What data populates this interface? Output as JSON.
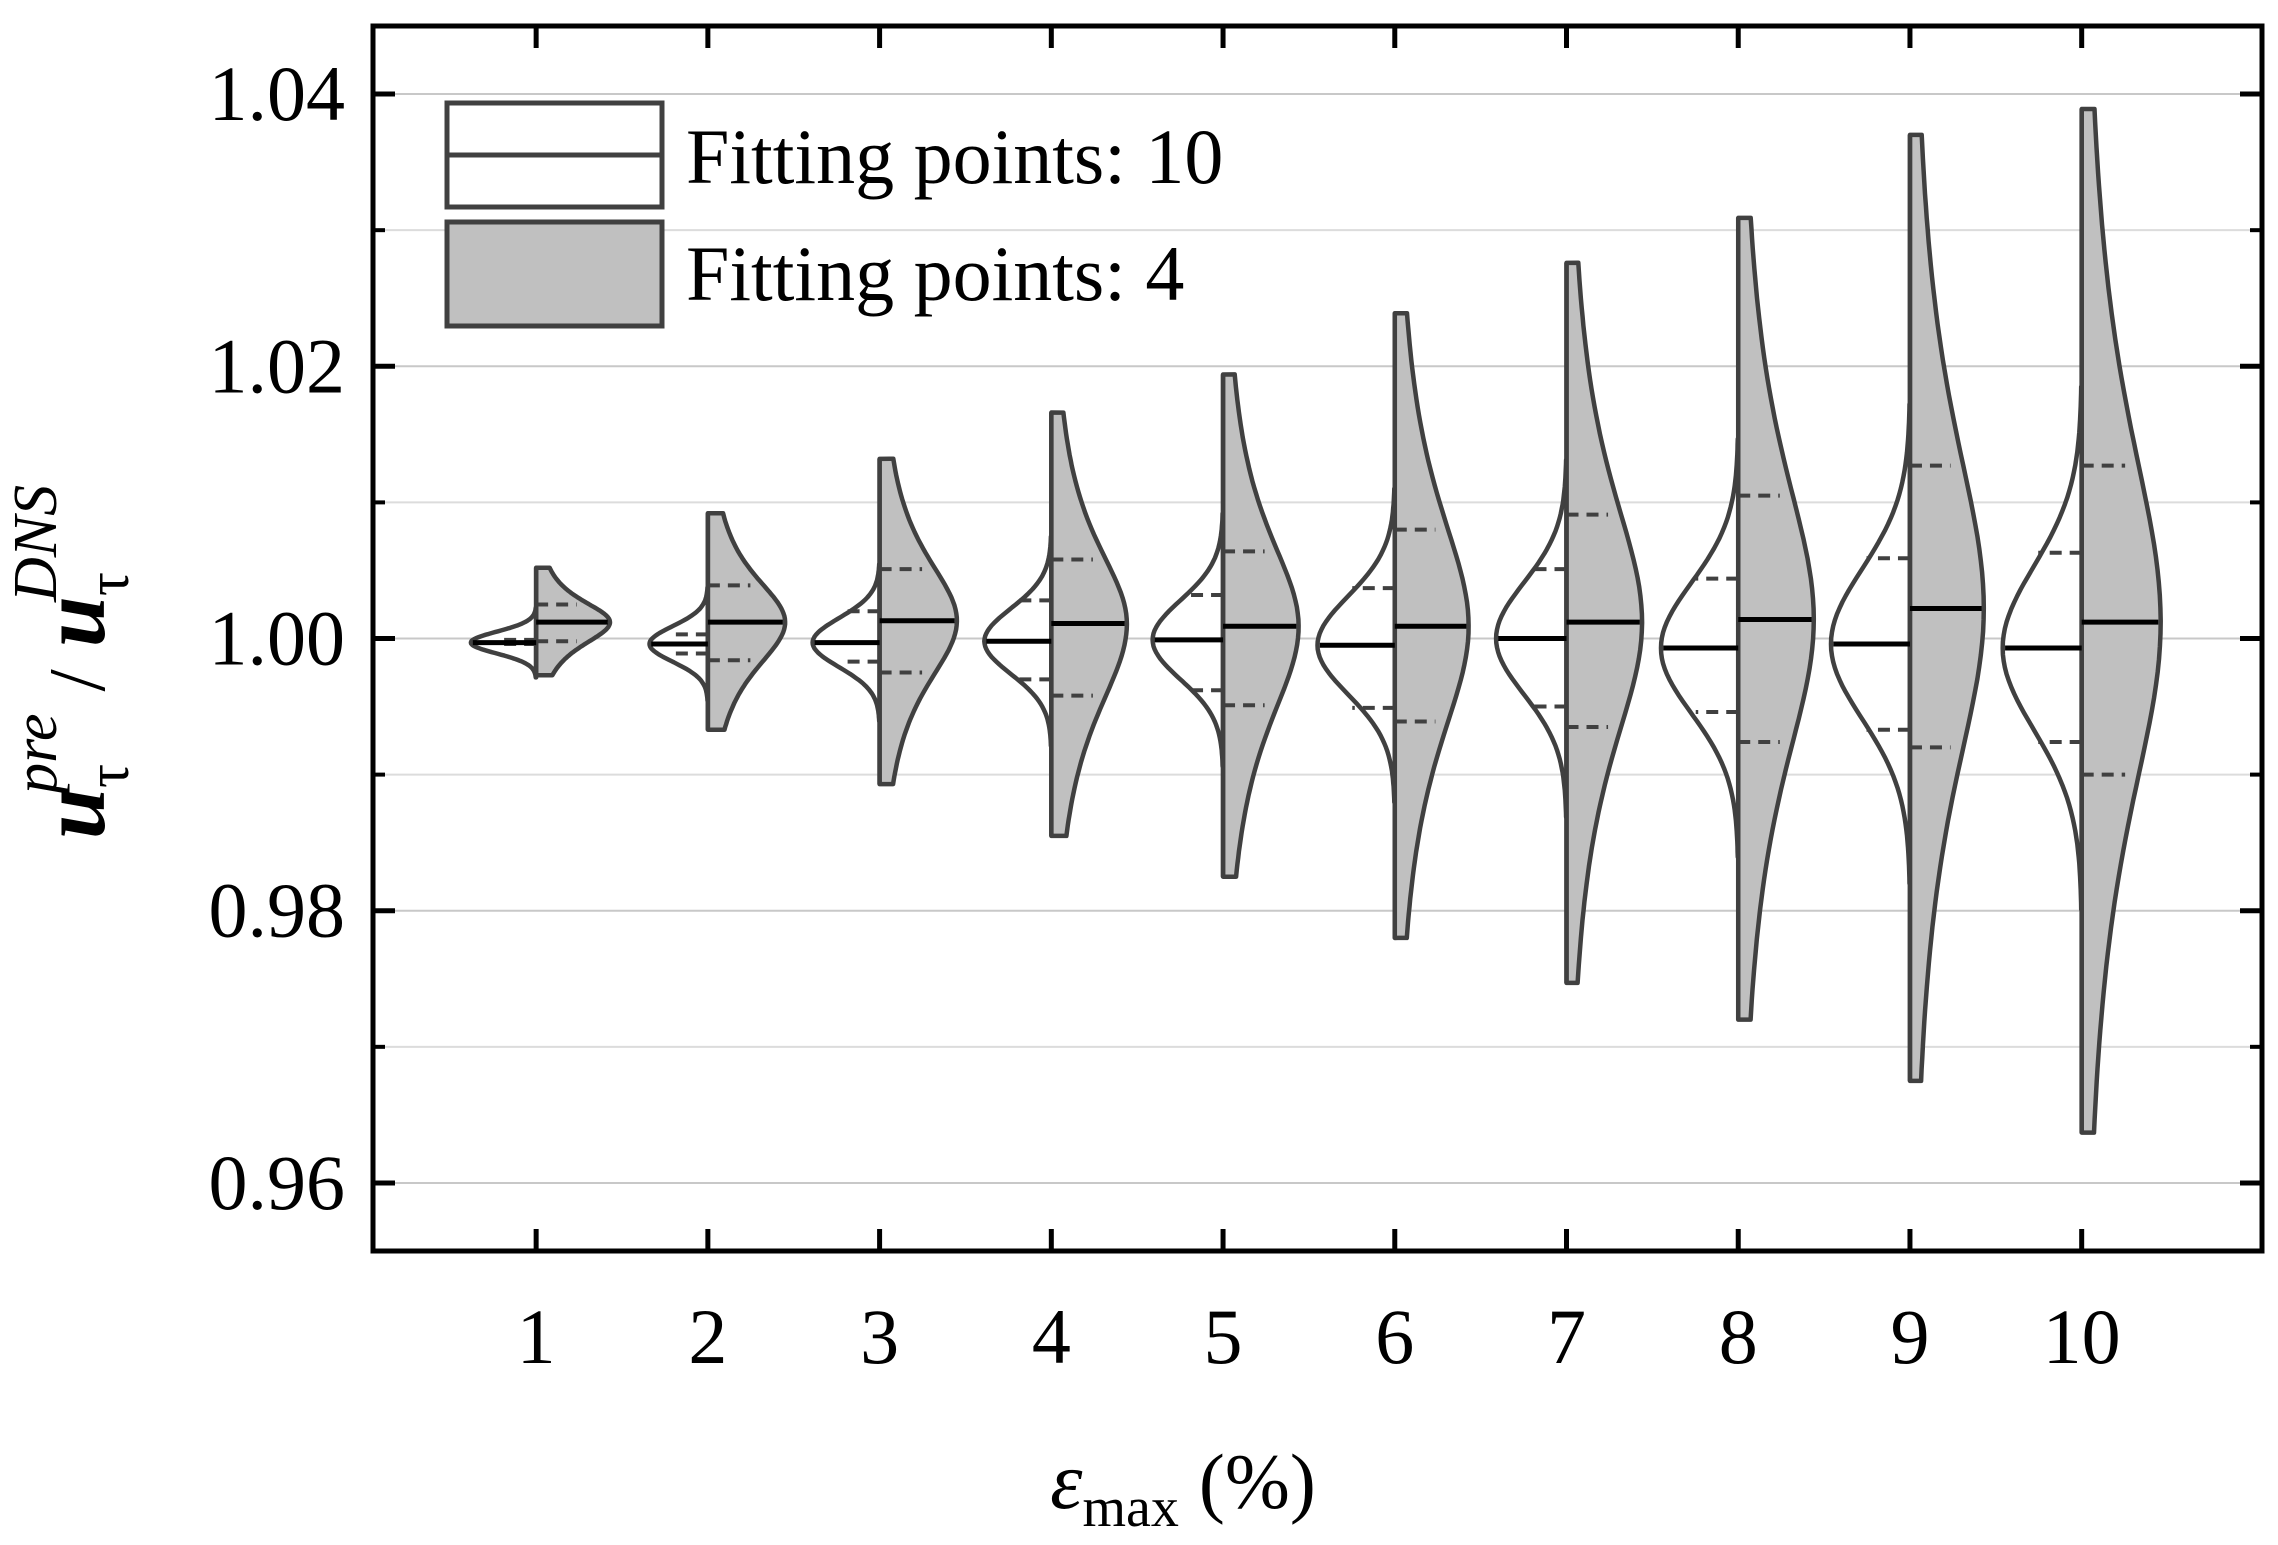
{
  "colors": {
    "frame": "#000000",
    "outline": "#404040",
    "fill_fp4": "#c0c0c0",
    "fill_fp10": "#ffffff",
    "grid_major": "#c8c8c8",
    "grid_minor": "#dcdcdc",
    "median": "#000000"
  },
  "chart_data": {
    "type": "split-violin",
    "xlabel": {
      "symbol": "ε",
      "subscript": "max",
      "unit": "(%)"
    },
    "ylabel": {
      "base": "u",
      "sub": "τ",
      "sup_pre": "pre",
      "sep": "/",
      "sup_dns": "DNS"
    },
    "categories": [
      "1",
      "2",
      "3",
      "4",
      "5",
      "6",
      "7",
      "8",
      "9",
      "10"
    ],
    "x_range": [
      0.05,
      11.05
    ],
    "ylim": [
      0.955,
      1.045
    ],
    "y_ticks": [
      0.96,
      0.98,
      1.0,
      1.02,
      1.04
    ],
    "y_tick_labels": [
      "0.96",
      "0.98",
      "1.00",
      "1.02",
      "1.04"
    ],
    "y_minor_ticks": [
      0.97,
      0.99,
      1.01,
      1.03
    ],
    "legend": {
      "position": "top-left",
      "entries": [
        {
          "label": "Fitting points: 10",
          "fill": "white"
        },
        {
          "label": "Fitting points: 4",
          "fill": "gray"
        }
      ]
    },
    "series": [
      {
        "name": "Fitting points: 10",
        "side": "left",
        "median": [
          0.9997,
          0.9996,
          0.9997,
          0.9998,
          0.9999,
          0.9995,
          1.0,
          0.9993,
          0.9996,
          0.9993
        ],
        "q1": [
          0.9996,
          0.9989,
          0.9983,
          0.997,
          0.9962,
          0.9949,
          0.995,
          0.9946,
          0.9933,
          0.9924
        ],
        "q3": [
          0.9999,
          1.0003,
          1.002,
          1.0028,
          1.0032,
          1.0037,
          1.0051,
          1.0044,
          1.0059,
          1.0063
        ],
        "width_pct": [
          0.38,
          0.34,
          0.39,
          0.39,
          0.41,
          0.45,
          0.41,
          0.45,
          0.46,
          0.46
        ],
        "spread": [
          0.0008,
          0.0013,
          0.0018,
          0.0024,
          0.0029,
          0.0036,
          0.0041,
          0.0048,
          0.0055,
          0.006
        ]
      },
      {
        "name": "Fitting points: 4",
        "side": "right",
        "median": [
          1.0012,
          1.0012,
          1.0013,
          1.0011,
          1.0009,
          1.0009,
          1.0012,
          1.0014,
          1.0022,
          1.0012
        ],
        "q1": [
          0.9998,
          0.9984,
          0.9975,
          0.9958,
          0.9951,
          0.9939,
          0.9935,
          0.9924,
          0.992,
          0.99
        ],
        "q3": [
          1.0025,
          1.0039,
          1.0051,
          1.0058,
          1.0064,
          1.008,
          1.0091,
          1.0105,
          1.0127,
          1.0127
        ],
        "min": [
          0.9973,
          0.9933,
          0.9893,
          0.9855,
          0.9825,
          0.978,
          0.9747,
          0.972,
          0.9675,
          0.9637
        ],
        "max": [
          1.0052,
          1.0092,
          1.0132,
          1.0166,
          1.0194,
          1.0239,
          1.0276,
          1.0309,
          1.037,
          1.0389
        ],
        "width_pct": [
          0.43,
          0.45,
          0.45,
          0.44,
          0.44,
          0.43,
          0.44,
          0.44,
          0.43,
          0.46
        ]
      }
    ]
  }
}
